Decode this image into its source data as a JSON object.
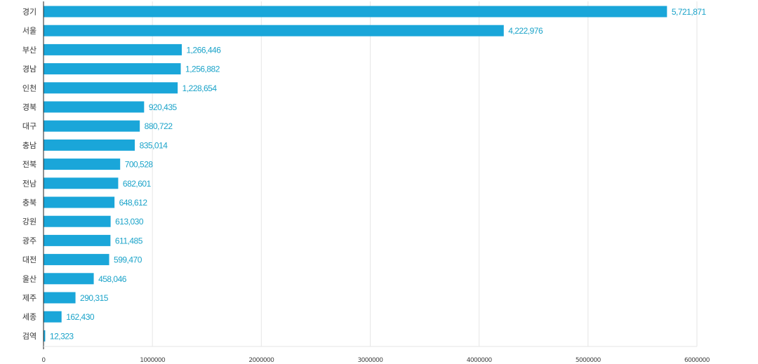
{
  "chart_data": {
    "type": "bar",
    "orientation": "horizontal",
    "categories": [
      "경기",
      "서울",
      "부산",
      "경남",
      "인천",
      "경북",
      "대구",
      "충남",
      "전북",
      "전남",
      "충북",
      "강원",
      "광주",
      "대전",
      "울산",
      "제주",
      "세종",
      "검역"
    ],
    "values": [
      5721871,
      4222976,
      1266446,
      1256882,
      1228654,
      920435,
      880722,
      835014,
      700528,
      682601,
      648612,
      613030,
      611485,
      599470,
      458046,
      290315,
      162430,
      12323
    ],
    "value_labels": [
      "5,721,871",
      "4,222,976",
      "1,266,446",
      "1,256,882",
      "1,228,654",
      "920,435",
      "880,722",
      "835,014",
      "700,528",
      "682,601",
      "648,612",
      "613,030",
      "611,485",
      "599,470",
      "458,046",
      "290,315",
      "162,430",
      "12,323"
    ],
    "x_ticks": [
      0,
      1000000,
      2000000,
      3000000,
      4000000,
      5000000,
      6000000
    ],
    "x_tick_labels": [
      "0",
      "1000000",
      "2000000",
      "3000000",
      "4000000",
      "5000000",
      "6000000"
    ],
    "xlim": [
      0,
      6000000
    ],
    "title": "",
    "xlabel": "",
    "ylabel": "",
    "grid": true,
    "legend": "none",
    "bar_color": "#1aa6d9",
    "label_color": "#1ba3c9"
  }
}
